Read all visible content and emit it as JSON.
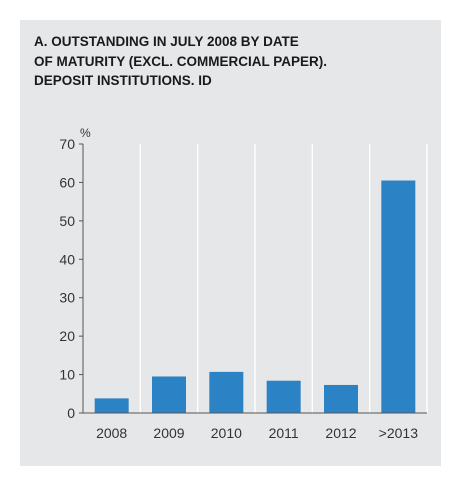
{
  "chart_data": {
    "type": "bar",
    "title": "A. OUTSTANDING IN JULY 2008 BY DATE\nOF MATURITY (EXCL. COMMERCIAL PAPER).\nDEPOSIT INSTITUTIONS. ID",
    "ylabel": "%",
    "xlabel": "",
    "categories": [
      "2008",
      "2009",
      "2010",
      "2011",
      "2012",
      ">2013"
    ],
    "values": [
      3.8,
      9.5,
      10.7,
      8.4,
      7.3,
      60.5
    ],
    "ylim": [
      0,
      70
    ],
    "yticks": [
      0,
      10,
      20,
      30,
      40,
      50,
      60,
      70
    ],
    "grid": "vertical",
    "legend": "none",
    "bar_color": "#2b83c6"
  }
}
